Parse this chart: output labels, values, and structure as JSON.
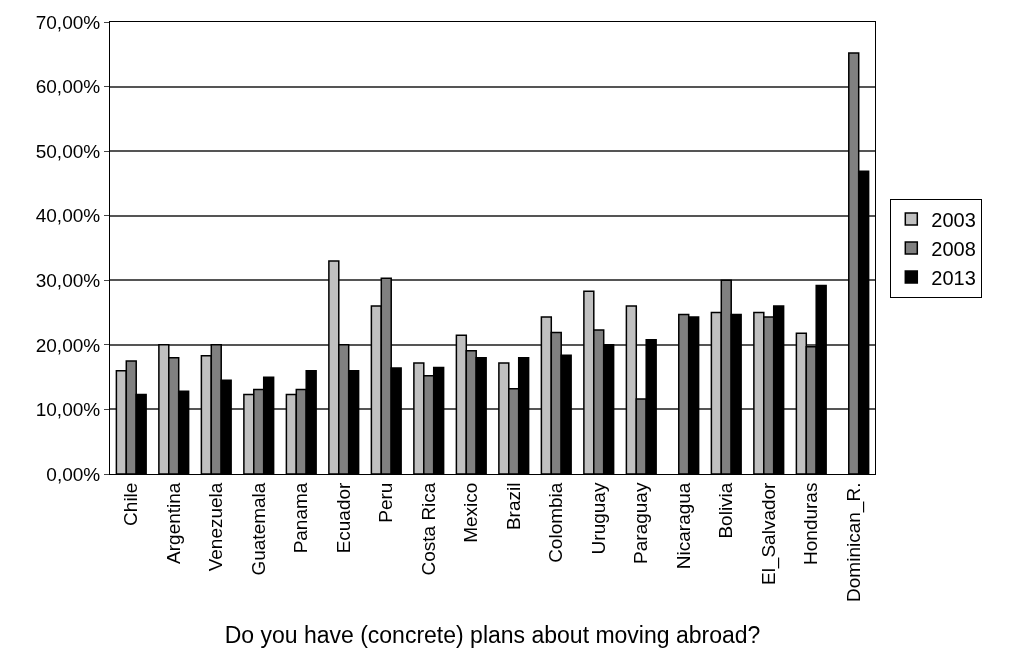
{
  "chart_data": {
    "type": "bar",
    "xlabel": "Do you have (concrete) plans about moving abroad?",
    "categories": [
      "Chile",
      "Argentina",
      "Venezuela",
      "Guatemala",
      "Panama",
      "Ecuador",
      "Peru",
      "Costa Rica",
      "Mexico",
      "Brazil",
      "Colombia",
      "Uruguay",
      "Paraguay",
      "Nicaragua",
      "Bolivia",
      "El_Salvador",
      "Honduras",
      "Dominican_R."
    ],
    "series": [
      {
        "name": "2003",
        "color": "#c0c0c0",
        "values": [
          16,
          20,
          18.3,
          12.3,
          12.3,
          33,
          26,
          17.2,
          21.5,
          17.2,
          24.3,
          28.3,
          26,
          null,
          25,
          25,
          21.8,
          null
        ]
      },
      {
        "name": "2008",
        "color": "#808080",
        "values": [
          17.5,
          18,
          20,
          13.1,
          13.1,
          20,
          30.3,
          15.2,
          19.1,
          13.2,
          21.9,
          22.3,
          11.6,
          24.7,
          30,
          24.3,
          19.7,
          65.2
        ]
      },
      {
        "name": "2013",
        "color": "#000000",
        "values": [
          12.3,
          12.8,
          14.5,
          15,
          16,
          16,
          16.4,
          16.5,
          18,
          18,
          18.4,
          20,
          20.8,
          24.3,
          24.7,
          26,
          29.2,
          46.9
        ]
      }
    ],
    "ylim": [
      0,
      70
    ],
    "yticks": [
      {
        "value": 0,
        "label": "0,00%"
      },
      {
        "value": 10,
        "label": "10,00%"
      },
      {
        "value": 20,
        "label": "20,00%"
      },
      {
        "value": 30,
        "label": "30,00%"
      },
      {
        "value": 40,
        "label": "40,00%"
      },
      {
        "value": 50,
        "label": "50,00%"
      },
      {
        "value": 60,
        "label": "60,00%"
      },
      {
        "value": 70,
        "label": "70,00%"
      }
    ],
    "grid": "y",
    "legend": "right"
  }
}
